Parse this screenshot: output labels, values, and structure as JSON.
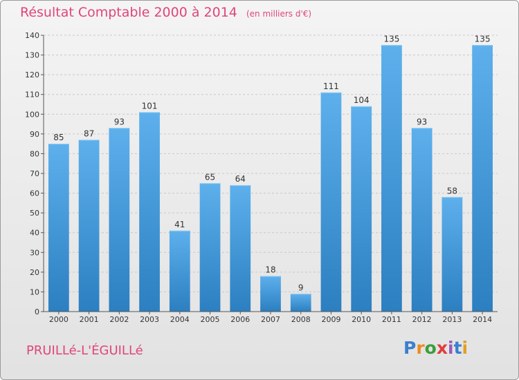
{
  "chart_data": {
    "type": "bar",
    "title": "Résultat Comptable 2000 à 2014",
    "subtitle": "(en milliers d'€)",
    "categories": [
      "2000",
      "2001",
      "2002",
      "2003",
      "2004",
      "2005",
      "2006",
      "2007",
      "2008",
      "2009",
      "2010",
      "2011",
      "2012",
      "2013",
      "2014"
    ],
    "values": [
      85,
      87,
      93,
      101,
      41,
      65,
      64,
      18,
      9,
      111,
      104,
      135,
      93,
      58,
      135
    ],
    "ylim": [
      0,
      140
    ],
    "yticks": [
      0,
      10,
      20,
      30,
      40,
      50,
      60,
      70,
      80,
      90,
      100,
      110,
      120,
      130,
      140
    ],
    "grid": true,
    "bar_color": "#4a9fe0"
  },
  "commune": "PRUILLé-L'ÉGUILLé",
  "logo": {
    "letters": [
      "P",
      "r",
      "o",
      "x",
      "i",
      "t",
      "i"
    ],
    "colors": [
      "#3a7fd0",
      "#f08a1c",
      "#3a9f3a",
      "#e23b3b",
      "#9b59b6",
      "#3a7fd0",
      "#e0a020"
    ]
  }
}
